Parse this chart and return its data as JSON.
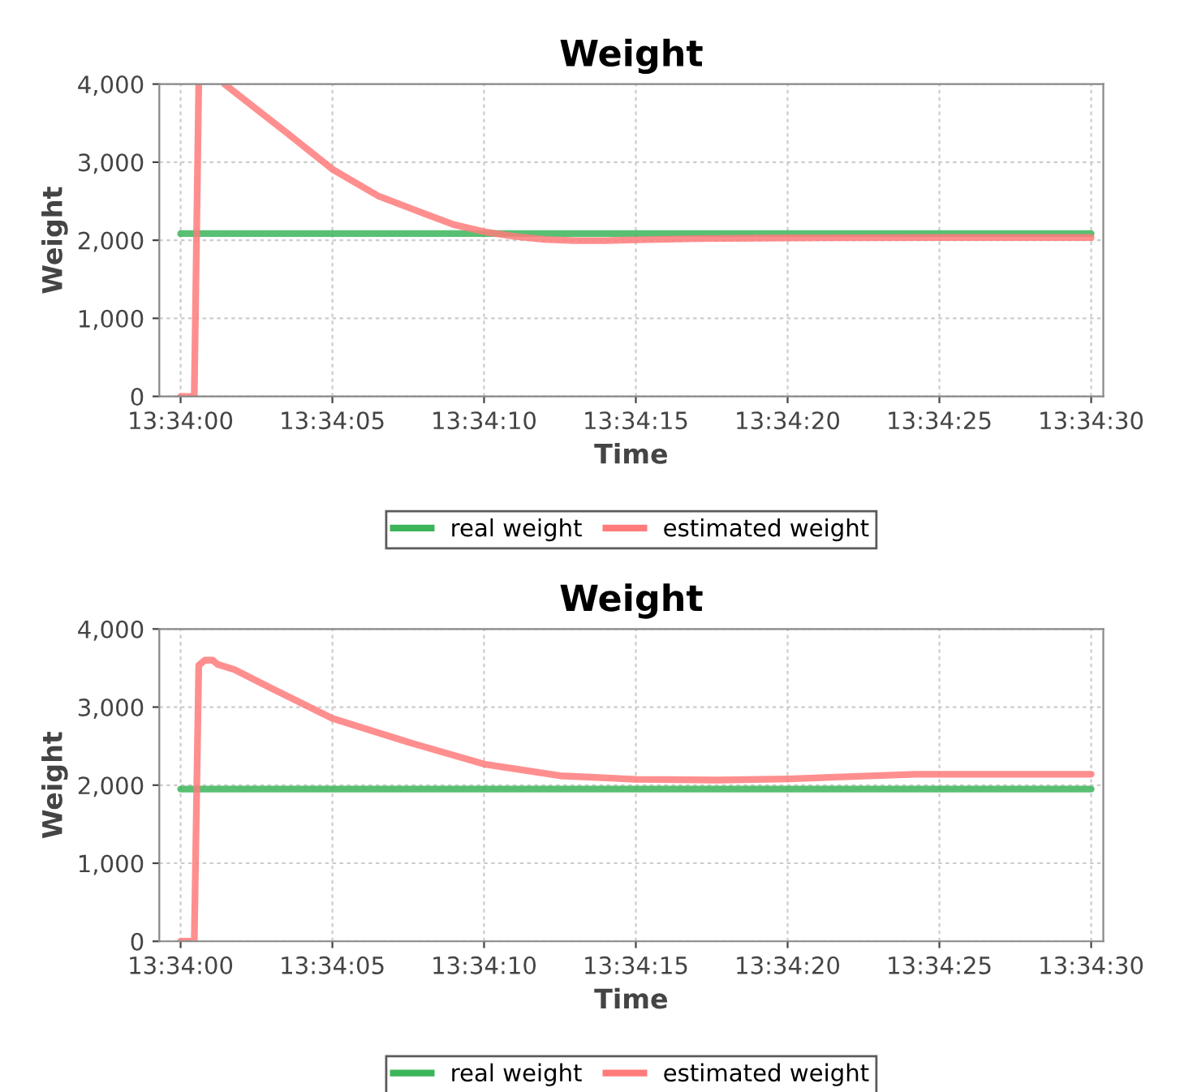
{
  "chart_data": [
    {
      "type": "line",
      "title": "Weight",
      "xlabel": "Time",
      "ylabel": "Weight",
      "xlim": [
        13.566472,
        13.575111
      ],
      "ylim": [
        0,
        4000
      ],
      "xticks": [
        {
          "value": 13.566667,
          "label": "13:34:00"
        },
        {
          "value": 13.568056,
          "label": "13:34:05"
        },
        {
          "value": 13.569444,
          "label": "13:34:10"
        },
        {
          "value": 13.570833,
          "label": "13:34:15"
        },
        {
          "value": 13.572222,
          "label": "13:34:20"
        },
        {
          "value": 13.573611,
          "label": "13:34:25"
        },
        {
          "value": 13.575,
          "label": "13:34:30"
        }
      ],
      "yticks": [
        0,
        {
          "value": 1000,
          "label": "1,000"
        },
        {
          "value": 2000,
          "label": "2,000"
        },
        {
          "value": 3000,
          "label": "3,000"
        },
        {
          "value": 4000,
          "label": "4,000"
        }
      ],
      "grid": true,
      "legend": "bottom",
      "series": [
        {
          "name": "real weight",
          "color": "#3cb55a",
          "x": [
            13.566667,
            13.575
          ],
          "values": [
            2085,
            2085
          ]
        },
        {
          "name": "estimated weight",
          "color": "#ff7b7b",
          "x": [
            13.566667,
            13.566792,
            13.566833,
            13.5669,
            13.567069,
            13.567361,
            13.567639,
            13.568056,
            13.568472,
            13.568889,
            13.569167,
            13.569444,
            13.569722,
            13.57,
            13.570278,
            13.570556,
            13.570833,
            13.571389,
            13.572222,
            13.573611,
            13.575
          ],
          "values": [
            0,
            0,
            4000,
            null,
            4000,
            3680,
            3375,
            2910,
            2570,
            2345,
            2200,
            2110,
            2050,
            2010,
            1995,
            1995,
            2005,
            2020,
            2030,
            2035,
            2035
          ]
        }
      ]
    },
    {
      "type": "line",
      "title": "Weight",
      "xlabel": "Time",
      "ylabel": "Weight",
      "xlim": [
        13.566472,
        13.575111
      ],
      "ylim": [
        0,
        4000
      ],
      "xticks": [
        {
          "value": 13.566667,
          "label": "13:34:00"
        },
        {
          "value": 13.568056,
          "label": "13:34:05"
        },
        {
          "value": 13.569444,
          "label": "13:34:10"
        },
        {
          "value": 13.570833,
          "label": "13:34:15"
        },
        {
          "value": 13.572222,
          "label": "13:34:20"
        },
        {
          "value": 13.573611,
          "label": "13:34:25"
        },
        {
          "value": 13.575,
          "label": "13:34:30"
        }
      ],
      "yticks": [
        0,
        {
          "value": 1000,
          "label": "1,000"
        },
        {
          "value": 2000,
          "label": "2,000"
        },
        {
          "value": 3000,
          "label": "3,000"
        },
        {
          "value": 4000,
          "label": "4,000"
        }
      ],
      "grid": true,
      "legend": "bottom",
      "series": [
        {
          "name": "real weight",
          "color": "#3cb55a",
          "x": [
            13.566667,
            13.575
          ],
          "values": [
            1950,
            1950
          ]
        },
        {
          "name": "estimated weight",
          "color": "#ff7b7b",
          "x": [
            13.566667,
            13.566792,
            13.566833,
            13.566889,
            13.566961,
            13.567008,
            13.567158,
            13.5675,
            13.568056,
            13.56875,
            13.569444,
            13.570139,
            13.570833,
            13.571583,
            13.572222,
            13.573389,
            13.575
          ],
          "values": [
            0,
            0,
            3535,
            3600,
            3600,
            3545,
            3480,
            3240,
            2855,
            2550,
            2270,
            2120,
            2075,
            2065,
            2080,
            2140,
            2140
          ]
        }
      ]
    }
  ]
}
